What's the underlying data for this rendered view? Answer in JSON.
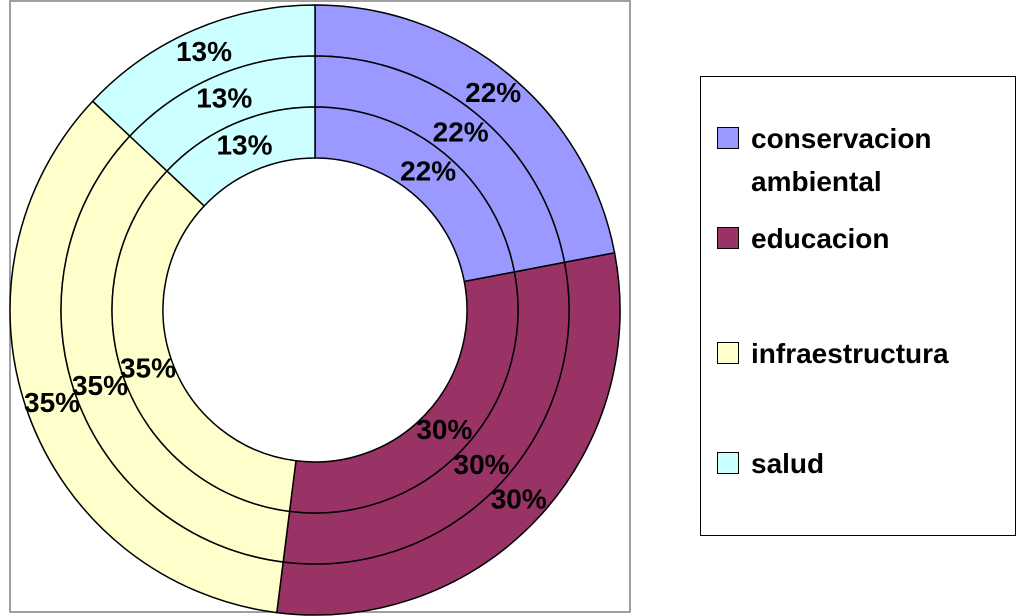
{
  "chart_data": {
    "type": "doughnut",
    "categories": [
      "conservacion ambiental",
      "educacion",
      "infraestructura",
      "salud"
    ],
    "colors": [
      "#9999ff",
      "#993366",
      "#ffffcc",
      "#ccffff"
    ],
    "series": [
      {
        "values": [
          22,
          30,
          35,
          13
        ],
        "value_labels": [
          "22%",
          "30%",
          "35%",
          "13%"
        ]
      },
      {
        "values": [
          22,
          30,
          35,
          13
        ],
        "value_labels": [
          "22%",
          "30%",
          "35%",
          "13%"
        ]
      },
      {
        "values": [
          22,
          30,
          35,
          13
        ],
        "value_labels": [
          "22%",
          "30%",
          "35%",
          "13%"
        ]
      }
    ],
    "legend": "right"
  }
}
